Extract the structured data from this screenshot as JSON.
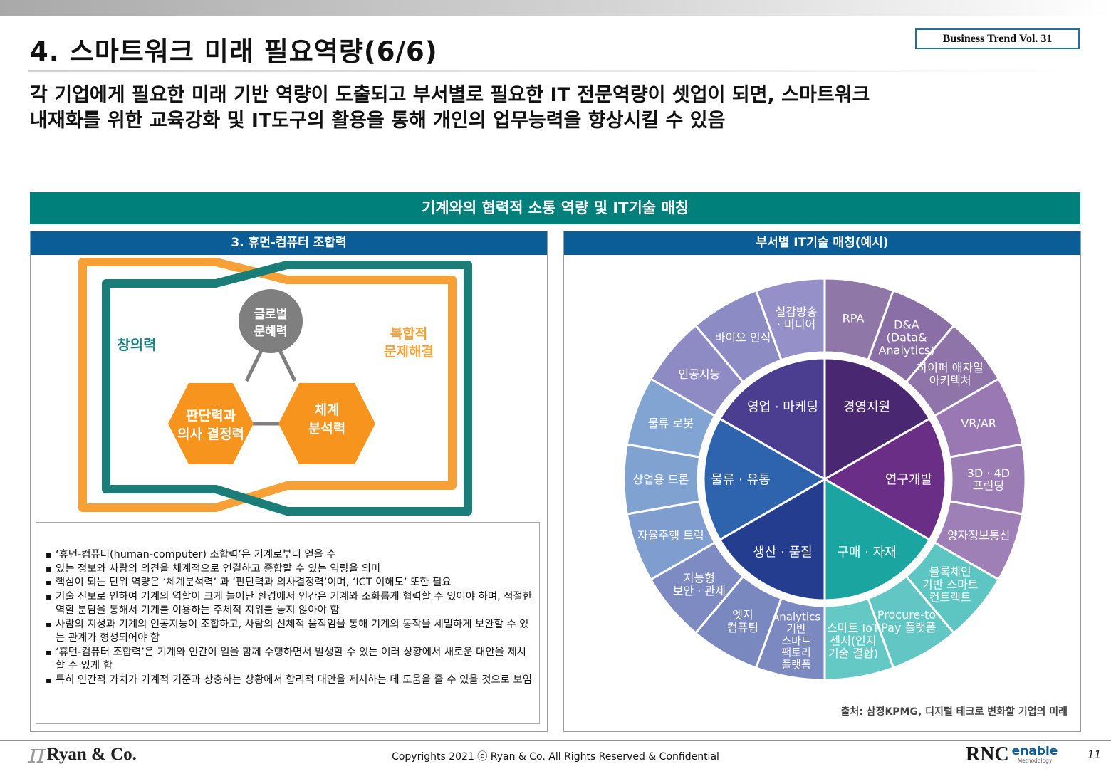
{
  "header": {
    "title": "4. 스마트워크 미래 필요역량(6/6)",
    "vol": "Business Trend Vol. 31",
    "subtitle_line1": "각 기업에게 필요한 미래 기반 역량이 도출되고 부서별로 필요한 IT 전문역량이 셋업이 되면, 스마트워크",
    "subtitle_line2": "내재화를 위한 교육강화 및 IT도구의 활용을 통해 개인의 업무능력을 향상시킬 수 있음"
  },
  "banner": "기계와의 협력적 소통 역량 및 IT기술 매칭",
  "left_panel": {
    "title": "3. 휴먼-컴퓨터 조합력",
    "diagram": {
      "creativity": "창의력",
      "complex_line1": "복합적",
      "complex_line2": "문제해결",
      "global_line1": "글로벌",
      "global_line2": "문해력",
      "judgment_line1": "판단력과",
      "judgment_line2": "의사 결정력",
      "system_line1": "체계",
      "system_line2": "분석력"
    },
    "notes": [
      "‘휴먼-컴퓨터(human-computer) 조합력’은 기계로부터 얻을 수",
      "있는 정보와 사람의 의견을 체계적으로 연결하고 종합할 수 있는 역량을 의미",
      " 핵심이 되는 단위 역량은 ‘체계분석력’ 과 ‘판단력과 의사결정력’이며, ‘ICT 이해도’ 또한 필요",
      "기술 진보로 인하여 기계의 역할이 크게 늘어난 환경에서 인간은 기계와 조화롭게 협력할 수 있어야 하며, 적절한 역할 분담을 통해서 기계를 이용하는 주체적 지위를 놓지 않아야 함",
      "사람의 지성과 기계의 인공지능이 조합하고, 사람의 신체적 움직임을 통해 기계의 동작을 세밀하게 보완할 수 있는 관계가 형성되어야 함",
      " ‘휴먼-컴퓨터 조합력’은 기계와 인간이 일을 함께 수행하면서 발생할 수 있는 여러 상황에서 새로운 대안을 제시할 수 있게 함",
      "특히 인간적 가치가 기계적 기준과 상충하는 상황에서 합리적 대안을 제시하는 데 도움을 줄 수 있을 것으로 보임"
    ]
  },
  "right_panel": {
    "title": "부서별 IT기술 매칭(예시)",
    "departments": [
      {
        "name": "경영지원",
        "color": "#4a2871",
        "techs": [
          [
            "RPA"
          ],
          [
            "D&A",
            "(Data&",
            "Analytics)"
          ],
          [
            "하이퍼 애자일",
            "아키텍처"
          ]
        ]
      },
      {
        "name": "연구개발",
        "color": "#6b2e87",
        "techs": [
          [
            "VR/AR"
          ],
          [
            "3D · 4D",
            "프린팅"
          ],
          [
            "양자정보통신"
          ]
        ]
      },
      {
        "name": "구매 · 자재",
        "color": "#1aa5a0",
        "techs": [
          [
            "블록체인",
            "기반 스마트",
            "컨트랙트"
          ],
          [
            "Procure-to",
            "-Pay 플랫폼"
          ],
          [
            "스마트 IoT",
            "센서(인지",
            "기술 결합)"
          ]
        ]
      },
      {
        "name": "생산 · 품질",
        "color": "#253d8f",
        "techs": [
          [
            "Analytics",
            "기반",
            "스마트",
            "팩토리",
            "플랫폼"
          ],
          [
            "엣지",
            "컴퓨팅"
          ],
          [
            "지능형",
            "보안 · 관제"
          ]
        ]
      },
      {
        "name": "물류 · 유통",
        "color": "#2e63ad",
        "techs": [
          [
            "자율주행 트럭"
          ],
          [
            "상업용 드론"
          ],
          [
            "물류 로봇"
          ]
        ]
      },
      {
        "name": "영업 · 마케팅",
        "color": "#4b3d8f",
        "techs": [
          [
            "인공지능"
          ],
          [
            "바이오 인식"
          ],
          [
            "실감방송",
            "· 미디어"
          ]
        ]
      }
    ],
    "source": "출처: 삼정KPMG, 디지털 테크로 변화할 기업의 미래"
  },
  "footer": {
    "pi_icon": "π",
    "company": "Ryan & Co.",
    "copyright": "Copyrights 2021 ⓒ Ryan & Co. All Rights Reserved & Confidential",
    "rnc": "RNC",
    "enable": "enable",
    "methodology": "Methodology",
    "page": "11"
  },
  "colors": {
    "teal": "#00807a",
    "navy": "#0a5d96",
    "orange": "#f7a035",
    "hexagon": "#f7941d",
    "circle": "#7f7f7f"
  }
}
